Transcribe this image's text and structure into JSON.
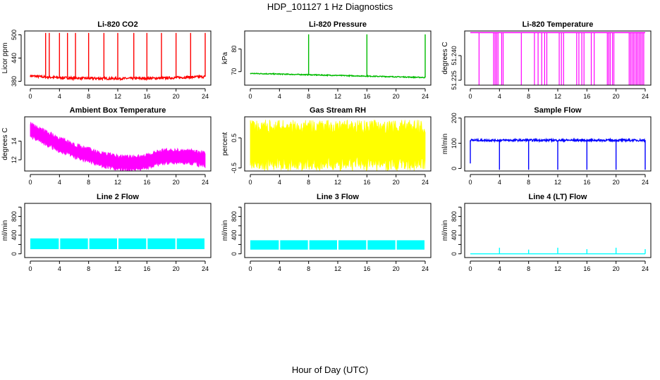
{
  "figure": {
    "title": "HDP_101127  1 Hz Diagnostics",
    "xlabel": "Hour of Day (UTC)"
  },
  "chart_data": [
    {
      "type": "line",
      "title": "Li-820 CO2",
      "ylabel": "Licor ppm",
      "color": "#ff0000",
      "xlim": [
        0,
        24
      ],
      "xticks": [
        0,
        4,
        8,
        12,
        16,
        20,
        24
      ],
      "ylim": [
        370,
        510
      ],
      "yticks": [
        380,
        440,
        500
      ],
      "pattern": "spikes",
      "baseline": [
        [
          0,
          394
        ],
        [
          2,
          391
        ],
        [
          6,
          388
        ],
        [
          12,
          387
        ],
        [
          18,
          388
        ],
        [
          24,
          392
        ]
      ],
      "noise": 3,
      "spikes": [
        [
          2.1,
          505
        ],
        [
          2.6,
          505
        ],
        [
          4.0,
          505
        ],
        [
          5.1,
          505
        ],
        [
          6.2,
          505
        ],
        [
          8.0,
          505
        ],
        [
          10.1,
          505
        ],
        [
          12.0,
          505
        ],
        [
          14.2,
          505
        ],
        [
          16.0,
          505
        ],
        [
          18.0,
          505
        ],
        [
          20.0,
          505
        ],
        [
          22.0,
          505
        ],
        [
          24.0,
          505
        ]
      ]
    },
    {
      "type": "line",
      "title": "Li-820 Pressure",
      "ylabel": "kPa",
      "color": "#00bb00",
      "xlim": [
        0,
        24
      ],
      "xticks": [
        0,
        4,
        8,
        12,
        16,
        20,
        24
      ],
      "ylim": [
        64,
        88
      ],
      "yticks": [
        70,
        80
      ],
      "pattern": "spikes",
      "baseline": [
        [
          0,
          69.2
        ],
        [
          8,
          68.6
        ],
        [
          16,
          68.0
        ],
        [
          24,
          67.4
        ]
      ],
      "noise": 0.2,
      "spikes": [
        [
          8.0,
          86.5
        ],
        [
          16.0,
          86.5
        ],
        [
          24.0,
          86.5
        ]
      ]
    },
    {
      "type": "line",
      "title": "Li-820 Temperature",
      "ylabel": "degrees C",
      "color": "#ff00ff",
      "xlim": [
        0,
        24
      ],
      "xticks": [
        0,
        4,
        8,
        12,
        16,
        20,
        24
      ],
      "ylim": [
        51.222,
        51.255
      ],
      "yticks": [
        51.225,
        51.24
      ],
      "ytick_labels": [
        "51.225",
        "51.240"
      ],
      "pattern": "drops",
      "baseline": [
        [
          0,
          51.254
        ],
        [
          24,
          51.254
        ]
      ],
      "noise": 0,
      "drops": [
        [
          1.2,
          51.222
        ],
        [
          3.2,
          51.222
        ],
        [
          3.4,
          51.222
        ],
        [
          3.6,
          51.222
        ],
        [
          3.8,
          51.222
        ],
        [
          4.3,
          51.222
        ],
        [
          4.5,
          51.222
        ],
        [
          7.0,
          51.222
        ],
        [
          8.8,
          51.222
        ],
        [
          9.3,
          51.222
        ],
        [
          9.8,
          51.222
        ],
        [
          10.2,
          51.222
        ],
        [
          10.5,
          51.222
        ],
        [
          12.2,
          51.222
        ],
        [
          12.5,
          51.222
        ],
        [
          12.8,
          51.222
        ],
        [
          14.6,
          51.222
        ],
        [
          14.9,
          51.222
        ],
        [
          15.3,
          51.222
        ],
        [
          15.6,
          51.222
        ],
        [
          16.6,
          51.222
        ],
        [
          17.0,
          51.222
        ],
        [
          18.8,
          51.222
        ],
        [
          19.0,
          51.222
        ],
        [
          19.2,
          51.222
        ],
        [
          19.5,
          51.222
        ],
        [
          19.7,
          51.222
        ],
        [
          21.8,
          51.222
        ],
        [
          22.0,
          51.222
        ],
        [
          22.2,
          51.222
        ],
        [
          22.4,
          51.222
        ],
        [
          22.6,
          51.222
        ],
        [
          22.8,
          51.222
        ],
        [
          23.0,
          51.222
        ],
        [
          23.2,
          51.222
        ],
        [
          23.4,
          51.222
        ],
        [
          23.6,
          51.222
        ],
        [
          23.8,
          51.222
        ]
      ]
    },
    {
      "type": "area",
      "title": "Ambient Box Temperature",
      "ylabel": "degrees C",
      "color": "#ff00ff",
      "xlim": [
        0,
        24
      ],
      "xticks": [
        0,
        4,
        8,
        12,
        16,
        20,
        24
      ],
      "ylim": [
        10.8,
        16.6
      ],
      "yticks": [
        12,
        14
      ],
      "pattern": "band",
      "baseline": [
        [
          0,
          15.2
        ],
        [
          2,
          14.4
        ],
        [
          4,
          13.6
        ],
        [
          6,
          13.0
        ],
        [
          8,
          12.5
        ],
        [
          10,
          12.0
        ],
        [
          12,
          11.7
        ],
        [
          14,
          11.6
        ],
        [
          16,
          11.8
        ],
        [
          18,
          12.3
        ],
        [
          20,
          12.4
        ],
        [
          22,
          12.3
        ],
        [
          24,
          12.0
        ]
      ],
      "band": 0.9
    },
    {
      "type": "area",
      "title": "Gas Stream RH",
      "ylabel": "percent",
      "color": "#ffff00",
      "xlim": [
        0,
        24
      ],
      "xticks": [
        0,
        4,
        8,
        12,
        16,
        20,
        24
      ],
      "ylim": [
        -0.6,
        1.2
      ],
      "yticks": [
        -0.5,
        0.5
      ],
      "pattern": "band",
      "baseline": [
        [
          0,
          0.25
        ],
        [
          24,
          0.25
        ]
      ],
      "band": 0.85
    },
    {
      "type": "line",
      "title": "Sample Flow",
      "ylabel": "ml/min",
      "color": "#0000ff",
      "xlim": [
        0,
        24
      ],
      "xticks": [
        0,
        4,
        8,
        12,
        16,
        20,
        24
      ],
      "ylim": [
        -10,
        205
      ],
      "yticks": [
        0,
        100,
        200
      ],
      "pattern": "dips",
      "baseline": [
        [
          0,
          112
        ],
        [
          24,
          112
        ]
      ],
      "noise": 4,
      "dips": [
        [
          0.0,
          20
        ],
        [
          4.0,
          -5
        ],
        [
          8.0,
          -5
        ],
        [
          12.0,
          -5
        ],
        [
          16.0,
          -5
        ],
        [
          20.0,
          -5
        ],
        [
          24.0,
          -5
        ]
      ]
    },
    {
      "type": "area",
      "title": "Line 2 Flow",
      "ylabel": "ml/min",
      "color": "#00ffff",
      "xlim": [
        0,
        24
      ],
      "xticks": [
        0,
        4,
        8,
        12,
        16,
        20,
        24
      ],
      "ylim": [
        -80,
        1080
      ],
      "yticks": [
        0,
        200,
        400,
        600,
        800,
        1000
      ],
      "ytick_labels": [
        "0",
        "",
        "400",
        "",
        "800",
        ""
      ],
      "pattern": "block",
      "lower": 100,
      "upper": 330,
      "gaps": [
        4.0,
        8.0,
        12.0,
        16.0,
        20.0
      ]
    },
    {
      "type": "area",
      "title": "Line 3 Flow",
      "ylabel": "ml/min",
      "color": "#00ffff",
      "xlim": [
        0,
        24
      ],
      "xticks": [
        0,
        4,
        8,
        12,
        16,
        20,
        24
      ],
      "ylim": [
        -80,
        1080
      ],
      "yticks": [
        0,
        200,
        400,
        600,
        800,
        1000
      ],
      "ytick_labels": [
        "0",
        "",
        "400",
        "",
        "800",
        ""
      ],
      "pattern": "block",
      "lower": 90,
      "upper": 290,
      "gaps": [
        4.0,
        8.0,
        12.0,
        16.0,
        20.0
      ]
    },
    {
      "type": "line",
      "title": "Line 4 (LT) Flow",
      "ylabel": "ml/min",
      "color": "#00ffff",
      "xlim": [
        0,
        24
      ],
      "xticks": [
        0,
        4,
        8,
        12,
        16,
        20,
        24
      ],
      "ylim": [
        -80,
        1080
      ],
      "yticks": [
        0,
        200,
        400,
        600,
        800,
        1000
      ],
      "ytick_labels": [
        "0",
        "",
        "400",
        "",
        "800",
        ""
      ],
      "pattern": "spikes",
      "baseline": [
        [
          0,
          0
        ],
        [
          24,
          0
        ]
      ],
      "noise": 0,
      "spikes": [
        [
          4.0,
          130
        ],
        [
          8.0,
          90
        ],
        [
          12.0,
          130
        ],
        [
          16.0,
          100
        ],
        [
          20.0,
          130
        ],
        [
          24.0,
          100
        ]
      ]
    }
  ]
}
